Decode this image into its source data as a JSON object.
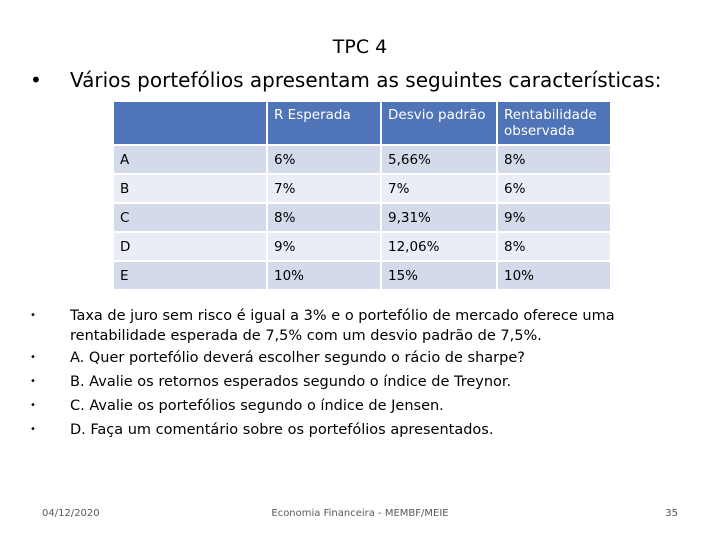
{
  "slide": {
    "title": "TPC 4",
    "intro_bullet": "•",
    "intro": "Vários portefólios apresentam as seguintes características:"
  },
  "table": {
    "headers": [
      "",
      "R Esperada",
      "Desvio padrão",
      "Rentabilidade observada"
    ],
    "rows": [
      [
        "A",
        "6%",
        "5,66%",
        "8%"
      ],
      [
        "B",
        "7%",
        "7%",
        "6%"
      ],
      [
        "C",
        "8%",
        "9,31%",
        "9%"
      ],
      [
        "D",
        "9%",
        "12,06%",
        "8%"
      ],
      [
        "E",
        "10%",
        "15%",
        "10%"
      ]
    ]
  },
  "bullets": [
    "Taxa de juro sem risco é igual a 3% e o portefólio de mercado oferece uma rentabilidade  esperada de 7,5% com um desvio padrão de 7,5%.",
    "A. Quer portefólio deverá escolher segundo o rácio de sharpe?",
    "B. Avalie os retornos esperados segundo o índice de Treynor.",
    "C. Avalie os portefólios segundo o índice de Jensen.",
    "D. Faça um comentário sobre os portefólios apresentados."
  ],
  "footer": {
    "date": "04/12/2020",
    "center": "Economia Financeira - MEMBF/MEIE",
    "page": "35"
  },
  "colors": {
    "header_bg": "#4f74b7",
    "row_bg": "#d3dbea",
    "row_alt_bg": "#e9edf5"
  }
}
